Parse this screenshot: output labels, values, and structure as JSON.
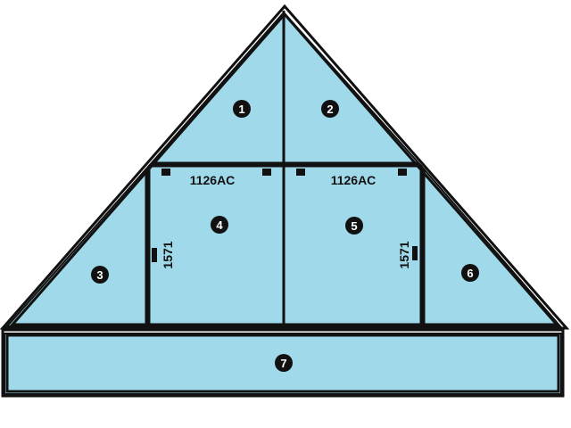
{
  "colors": {
    "glass": "#9fd9ea",
    "frame": "#111111",
    "background": "#ffffff"
  },
  "panels": [
    {
      "id": "1",
      "label": "1"
    },
    {
      "id": "2",
      "label": "2"
    },
    {
      "id": "3",
      "label": "3"
    },
    {
      "id": "4",
      "label": "4"
    },
    {
      "id": "5",
      "label": "5"
    },
    {
      "id": "6",
      "label": "6"
    },
    {
      "id": "7",
      "label": "7"
    }
  ],
  "door_left": {
    "width_label": "1126AC",
    "height_label": "1571"
  },
  "door_right": {
    "width_label": "1126AC",
    "height_label": "1571"
  }
}
